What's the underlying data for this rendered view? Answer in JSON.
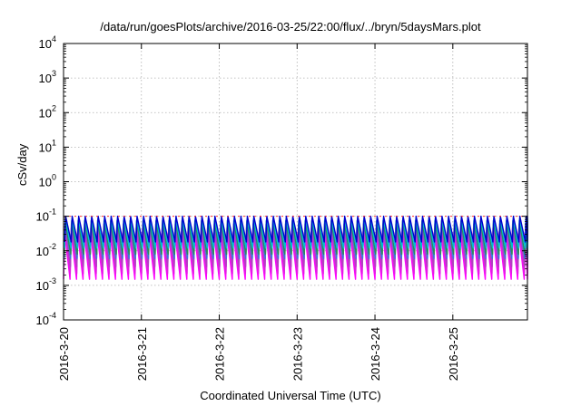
{
  "chart_data": {
    "type": "line",
    "title": "/data/run/goesPlots/archive/2016-03-25/22:00/flux/../bryn/5daysMars.plot",
    "xlabel": "Coordinated Universal Time (UTC)",
    "ylabel": "cSv/day",
    "yscale": "log",
    "ylim": [
      0.0001,
      10000
    ],
    "xlim": [
      "2016-03-20 00:00",
      "2016-03-25 23:00"
    ],
    "x_ticks": [
      "2016-3-20",
      "2016-3-21",
      "2016-3-22",
      "2016-3-23",
      "2016-3-24",
      "2016-3-25"
    ],
    "y_ticks": [
      {
        "value": 0.0001,
        "base": "10",
        "exp": "-4"
      },
      {
        "value": 0.001,
        "base": "10",
        "exp": "-3"
      },
      {
        "value": 0.01,
        "base": "10",
        "exp": "-2"
      },
      {
        "value": 0.1,
        "base": "10",
        "exp": "-1"
      },
      {
        "value": 1,
        "base": "10",
        "exp": "0"
      },
      {
        "value": 10,
        "base": "10",
        "exp": "1"
      },
      {
        "value": 100,
        "base": "10",
        "exp": "2"
      },
      {
        "value": 1000,
        "base": "10",
        "exp": "3"
      },
      {
        "value": 10000,
        "base": "10",
        "exp": "4"
      }
    ],
    "grid": true,
    "reference_line": {
      "value": 0.1,
      "color": "#ff3333"
    },
    "cycle_hours": 2,
    "series": [
      {
        "color": "#ff00ff",
        "peak": 0.035,
        "trough": 0.0015
      },
      {
        "color": "#e020e0",
        "peak": 0.045,
        "trough": 0.0022
      },
      {
        "color": "#b040c0",
        "peak": 0.06,
        "trough": 0.0035
      },
      {
        "color": "#3377dd",
        "peak": 0.075,
        "trough": 0.006
      },
      {
        "color": "#2e8b57",
        "peak": 0.07,
        "trough": 0.008
      },
      {
        "color": "#00bcd4",
        "peak": 0.085,
        "trough": 0.012
      },
      {
        "color": "#0000cc",
        "peak": 0.1,
        "trough": 0.018
      }
    ]
  }
}
